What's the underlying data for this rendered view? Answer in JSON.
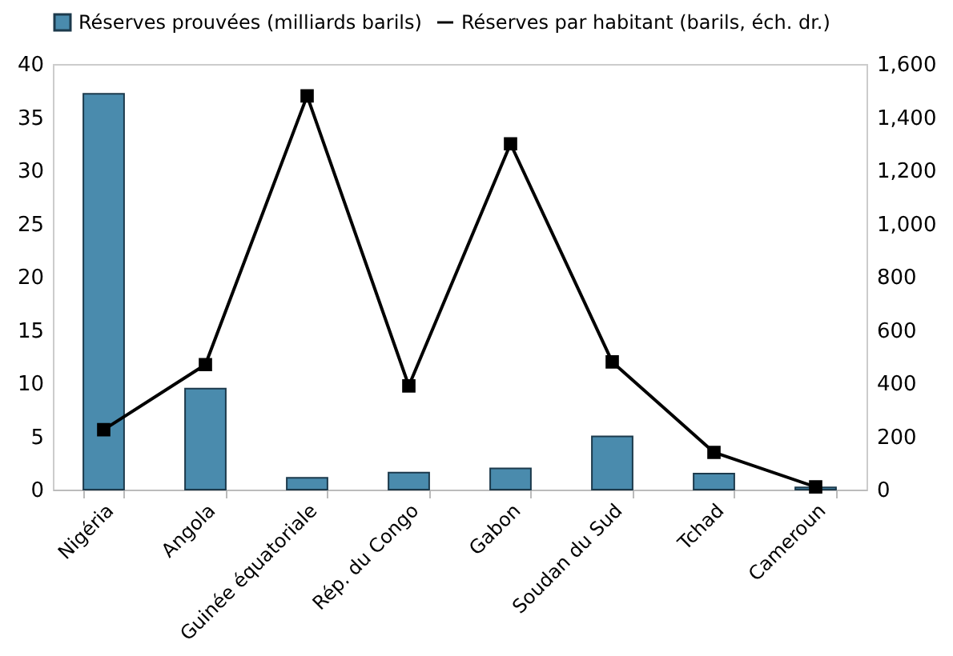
{
  "chart_data": {
    "type": "bar",
    "categories": [
      "Nigéria",
      "Angola",
      "Guinée équatoriale",
      "Rép. du Congo",
      "Gabon",
      "Soudan du Sud",
      "Tchad",
      "Cameroun"
    ],
    "series": [
      {
        "name": "Réserves prouvées (milliards barils)",
        "color": "#4a8bad",
        "values": [
          37.2,
          9.5,
          1.1,
          1.6,
          2.0,
          5.0,
          1.5,
          0.2
        ]
      },
      {
        "name": "Réserves par habitant (barils, éch. dr.)",
        "type": "line",
        "axis": "y2",
        "color": "#000000",
        "values": [
          225,
          470,
          1480,
          390,
          1300,
          480,
          140,
          10
        ]
      }
    ],
    "ylim": [
      0,
      40
    ],
    "yticks": [
      0,
      5,
      10,
      15,
      20,
      25,
      30,
      35,
      40
    ],
    "y2lim": [
      0,
      1600
    ],
    "y2ticks": [
      0,
      200,
      400,
      600,
      800,
      {
        "value": 1000,
        "label": "1,000"
      },
      {
        "value": 1200,
        "label": "1,200"
      },
      {
        "value": 1400,
        "label": "1,400"
      },
      {
        "value": 1600,
        "label": "1,600"
      }
    ],
    "grid": false,
    "legend": "top",
    "marker": "square",
    "line_style": "solid"
  }
}
